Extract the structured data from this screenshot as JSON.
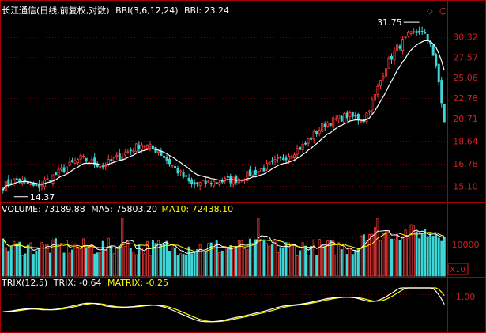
{
  "colors": {
    "background": "#000000",
    "frame": "#a40000",
    "grid": "#7a0000",
    "up": "#ff3b3b",
    "down": "#3fd6d6",
    "line_white": "#ffffff",
    "line_yellow": "#ffff00",
    "axis_label": "#cc2020"
  },
  "price_panel": {
    "title": "长江通信(日线,前复权,对数)",
    "indicator": "BBI(3,6,12,24)",
    "indicator_value": "BBI: 23.24",
    "high_label": "31.75",
    "low_label": "14.37",
    "marker_icon": "diamond-icon",
    "y_ticks": [
      "30.32",
      "27.57",
      "25.06",
      "22.78",
      "20.71",
      "18.64",
      "16.78",
      "15.10"
    ]
  },
  "volume_panel": {
    "label": "VOLUME: 73189.88",
    "ma5": "MA5: 75803.20",
    "ma10": "MA10: 72438.10",
    "y_tick": "10000",
    "unit_label": "X10"
  },
  "trix_panel": {
    "label": "TRIX(12,5)",
    "trix": "TRIX: -0.64",
    "matrix": "MATRIX: -0.25",
    "y_tick": "1.00"
  },
  "chart_data": {
    "type": "candlestick",
    "scale": "log",
    "price_range": [
      14.2,
      33.2
    ],
    "n_bars": 160,
    "price_anchors": [
      [
        0,
        15.1
      ],
      [
        5,
        15.6
      ],
      [
        12,
        15.0
      ],
      [
        20,
        16.1
      ],
      [
        28,
        17.2
      ],
      [
        36,
        16.6
      ],
      [
        44,
        17.6
      ],
      [
        50,
        18.4
      ],
      [
        56,
        17.8
      ],
      [
        62,
        16.4
      ],
      [
        68,
        15.2
      ],
      [
        76,
        15.4
      ],
      [
        84,
        15.6
      ],
      [
        92,
        16.2
      ],
      [
        100,
        17.1
      ],
      [
        108,
        18.2
      ],
      [
        116,
        20.2
      ],
      [
        124,
        21.0
      ],
      [
        130,
        20.6
      ],
      [
        134,
        23.0
      ],
      [
        138,
        26.5
      ],
      [
        142,
        28.8
      ],
      [
        146,
        30.4
      ],
      [
        150,
        31.2
      ],
      [
        154,
        29.6
      ],
      [
        157,
        24.5
      ],
      [
        159,
        20.3
      ]
    ],
    "annotations": [
      {
        "text": "31.75",
        "bar": 150,
        "price": 31.75,
        "type": "high"
      },
      {
        "text": "14.37",
        "bar": 4,
        "price": 14.37,
        "type": "low"
      }
    ],
    "volume": {
      "last": 73189.88,
      "ma5": 75803.2,
      "ma10": 72438.1,
      "tick": 10000,
      "spike_bars": [
        43,
        92,
        135
      ]
    },
    "trix": {
      "trix": -0.64,
      "matrix": -0.25,
      "tick": 1.0
    }
  }
}
